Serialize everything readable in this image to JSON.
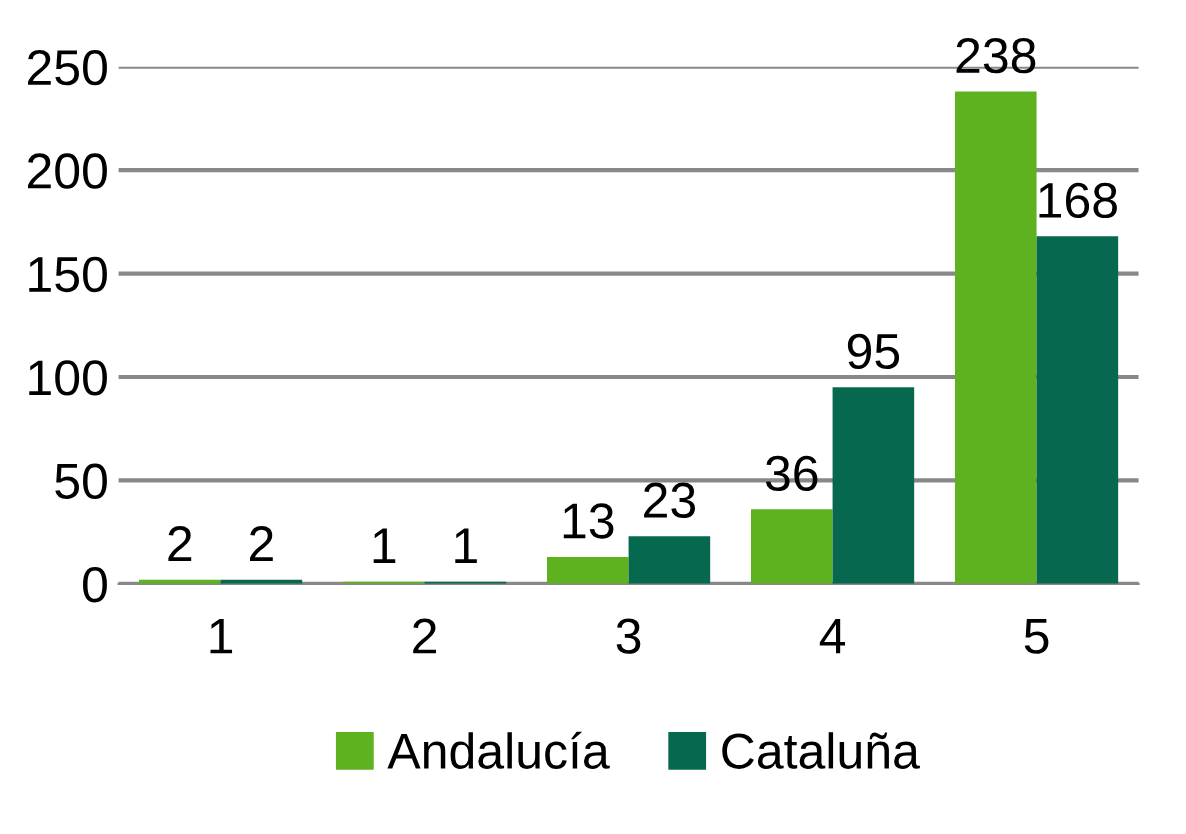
{
  "chart_data": {
    "type": "bar",
    "categories": [
      "1",
      "2",
      "3",
      "4",
      "5"
    ],
    "series": [
      {
        "name": "Andalucía",
        "color": "#5eb220",
        "values": [
          2,
          1,
          13,
          36,
          238
        ]
      },
      {
        "name": "Cataluña",
        "color": "#06684f",
        "values": [
          2,
          1,
          23,
          95,
          168
        ]
      }
    ],
    "ylim": [
      0,
      250
    ],
    "yticks": [
      0,
      50,
      100,
      150,
      200,
      250
    ],
    "grid": "y",
    "legend": "bottom",
    "data_labels": true
  }
}
